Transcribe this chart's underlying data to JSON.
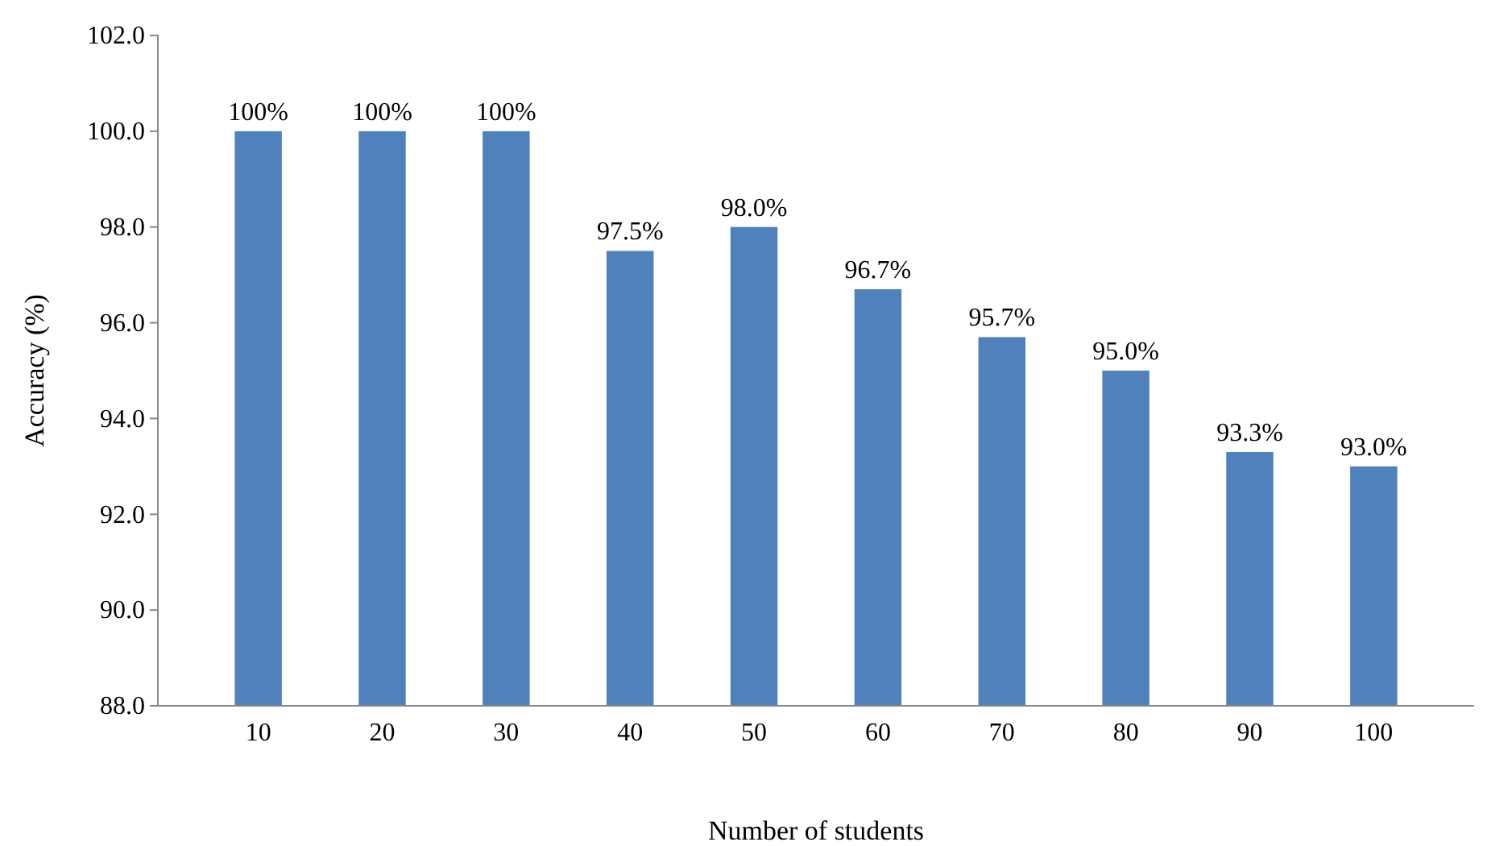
{
  "chart_data": {
    "type": "bar",
    "xlabel": "Number of students",
    "ylabel": "Accuracy (%)",
    "categories": [
      "10",
      "20",
      "30",
      "40",
      "50",
      "60",
      "70",
      "80",
      "90",
      "100"
    ],
    "values": [
      100,
      100,
      100,
      97.5,
      98.0,
      96.7,
      95.7,
      95.0,
      93.3,
      93.0
    ],
    "value_labels": [
      "100%",
      "100%",
      "100%",
      "97.5%",
      "98.0%",
      "96.7%",
      "95.7%",
      "95.0%",
      "93.3%",
      "93.0%"
    ],
    "color": "#4f81bd",
    "ylim": [
      88,
      102
    ],
    "yticks": [
      {
        "value": 88,
        "label": "88.0"
      },
      {
        "value": 90,
        "label": "90.0"
      },
      {
        "value": 92,
        "label": "92.0"
      },
      {
        "value": 94,
        "label": "94.0"
      },
      {
        "value": 96,
        "label": "96.0"
      },
      {
        "value": 98,
        "label": "98.0"
      },
      {
        "value": 100,
        "label": "100.0"
      },
      {
        "value": 102,
        "label": "102.0"
      }
    ],
    "grid": false
  }
}
